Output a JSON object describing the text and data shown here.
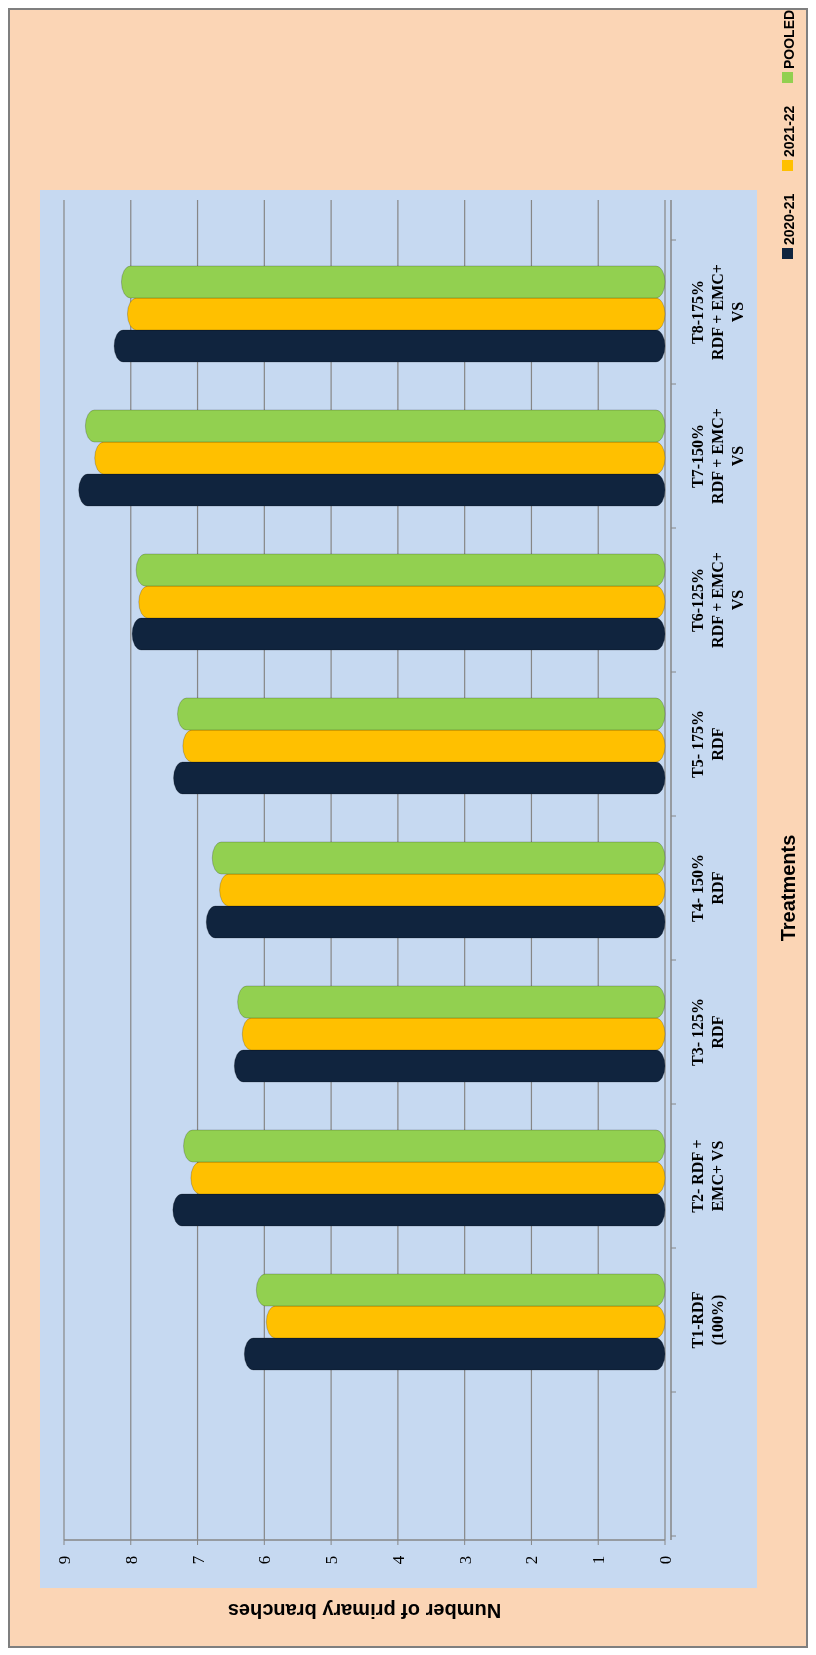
{
  "chart_data": {
    "type": "bar",
    "orientation": "horizontal",
    "xlabel": "Number of primary branches",
    "ylabel": "Treatments",
    "categories": [
      "T8-175%\nRDF + EMC+\nVS",
      "T7-150%\nRDF + EMC+\nVS",
      "T6-125%\nRDF + EMC+\nVS",
      "T5- 175%\nRDF",
      "T4- 150%\nRDF",
      "T3- 125%\nRDF",
      "T2- RDF +\nEMC+ VS",
      "T1-RDF\n(100%)",
      null
    ],
    "series": [
      {
        "name": "2020-21",
        "color": "#10243e",
        "values": [
          8.25,
          8.78,
          7.98,
          7.36,
          6.87,
          6.45,
          7.37,
          6.3,
          null
        ]
      },
      {
        "name": "2021-22",
        "color": "#ffc000",
        "values": [
          8.05,
          8.54,
          7.88,
          7.22,
          6.67,
          6.33,
          7.1,
          5.97,
          null
        ]
      },
      {
        "name": "POOLED",
        "color": "#92d050",
        "values": [
          8.14,
          8.68,
          7.92,
          7.3,
          6.78,
          6.4,
          7.21,
          6.12,
          null
        ]
      }
    ],
    "xlim": [
      9,
      0
    ],
    "xticks": [
      0,
      1,
      2,
      3,
      4,
      5,
      6,
      7,
      8,
      9
    ],
    "grid": "x",
    "legend": "top right"
  }
}
